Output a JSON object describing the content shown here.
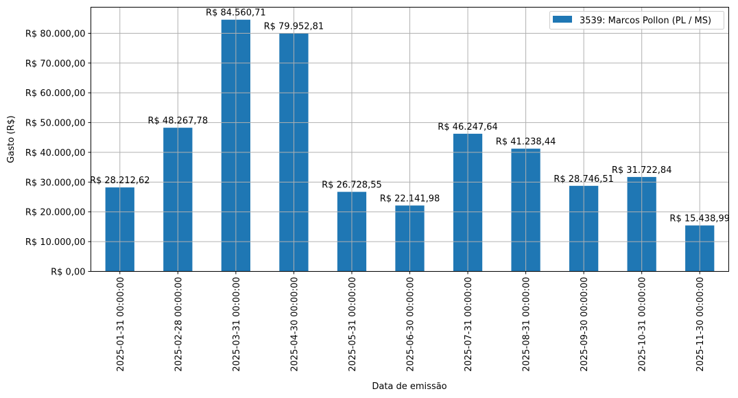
{
  "chart_data": {
    "type": "bar",
    "title": "",
    "xlabel": "Data de emissão",
    "ylabel": "Gasto (R$)",
    "ylim": [
      0,
      88760
    ],
    "grid": true,
    "legend_position": "top-right",
    "bar_color": "#1f77b4",
    "categories": [
      "2025-01-31 00:00:00",
      "2025-02-28 00:00:00",
      "2025-03-31 00:00:00",
      "2025-04-30 00:00:00",
      "2025-05-31 00:00:00",
      "2025-06-30 00:00:00",
      "2025-07-31 00:00:00",
      "2025-08-31 00:00:00",
      "2025-09-30 00:00:00",
      "2025-10-31 00:00:00",
      "2025-11-30 00:00:00"
    ],
    "series": [
      {
        "name": "3539: Marcos Pollon (PL / MS)",
        "values": [
          28212.62,
          48267.78,
          84560.71,
          79952.81,
          26728.55,
          22141.98,
          46247.64,
          41238.44,
          28746.51,
          31722.84,
          15438.99
        ],
        "data_labels": [
          "R$ 28.212,62",
          "R$ 48.267,78",
          "R$ 84.560,71",
          "R$ 79.952,81",
          "R$ 26.728,55",
          "R$ 22.141,98",
          "R$ 46.247,64",
          "R$ 41.238,44",
          "R$ 28.746,51",
          "R$ 31.722,84",
          "R$ 15.438,99"
        ]
      }
    ],
    "yticks": [
      0,
      10000,
      20000,
      30000,
      40000,
      50000,
      60000,
      70000,
      80000
    ],
    "ytick_labels": [
      "R$ 0,00",
      "R$ 10.000,00",
      "R$ 20.000,00",
      "R$ 30.000,00",
      "R$ 40.000,00",
      "R$ 50.000,00",
      "R$ 60.000,00",
      "R$ 70.000,00",
      "R$ 80.000,00"
    ]
  }
}
